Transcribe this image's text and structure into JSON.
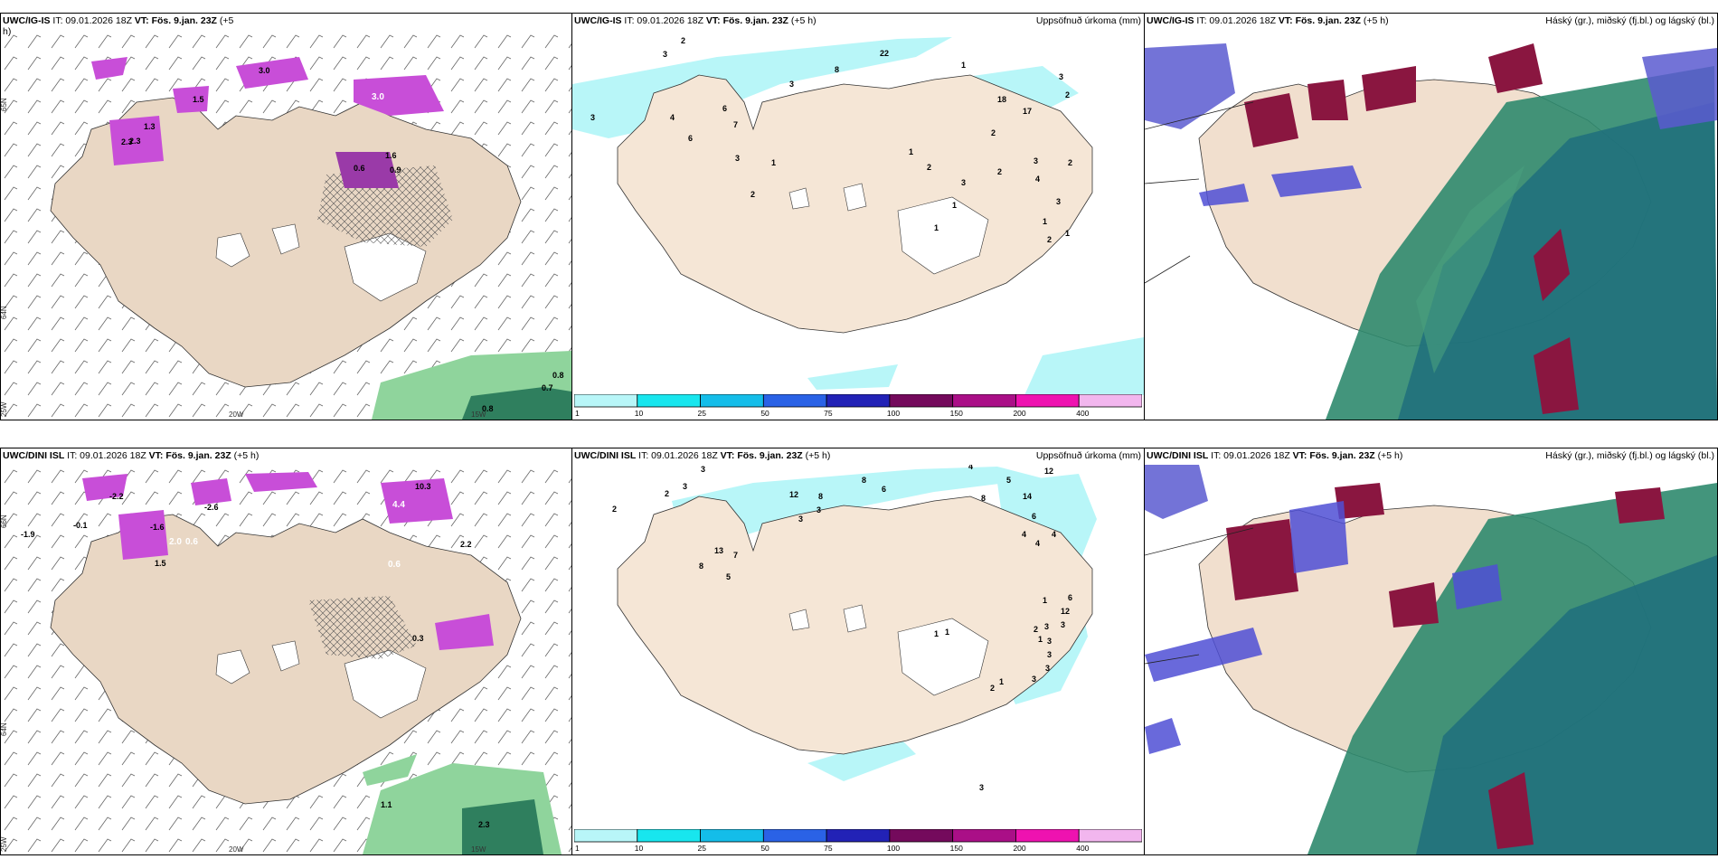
{
  "panels": {
    "top_left": {
      "model": "UWC/IG-IS",
      "it": "IT: 09.01.2026 18Z",
      "vt": "VT: Fös. 9.jan. 23Z",
      "lead": "(+5",
      "lead2": "h)",
      "lat_labels": [
        "65N",
        "64N"
      ],
      "lon_labels": [
        "20W",
        "15W",
        "25W"
      ],
      "values": [
        "2.3",
        "3.0",
        "2.3",
        "1.3",
        "1.5",
        "3.0",
        "1.6",
        "0.9",
        "0.6",
        "0.8",
        "0.7",
        "0.8"
      ]
    },
    "top_mid": {
      "model": "UWC/IG-IS",
      "it": "IT: 09.01.2026 18Z",
      "vt": "VT: Fös. 9.jan. 23Z",
      "lead": "(+5 h)",
      "right_title": "Uppsöfnuð úrkoma (mm)",
      "values": [
        "2",
        "3",
        "3",
        "4",
        "6",
        "7",
        "6",
        "3",
        "2",
        "1",
        "8",
        "3",
        "22",
        "1",
        "18",
        "17",
        "3",
        "2",
        "2",
        "1",
        "2",
        "3",
        "2",
        "3",
        "4",
        "2",
        "1",
        "3",
        "1",
        "1",
        "2",
        "1"
      ]
    },
    "top_right": {
      "model": "UWC/IG-IS",
      "it": "IT: 09.01.2026 18Z",
      "vt": "VT: Fös. 9.jan. 23Z",
      "lead": "(+5 h)",
      "right_title": "Háský (gr.), miðský (fj.bl.) og lágský (bl.)"
    },
    "bottom_left": {
      "model": "UWC/DINI ISL",
      "it": "IT: 09.01.2026 18Z",
      "vt": "VT: Fös. 9.jan. 23Z",
      "lead": "(+5 h)",
      "lat_labels": [
        "66N",
        "64N"
      ],
      "lon_labels": [
        "20W",
        "15W",
        "25W"
      ],
      "values": [
        "-1.9",
        "-0.1",
        "-2.2",
        "-2.6",
        "4.4",
        "10.3",
        "-1.6",
        "2.0",
        "0.6",
        "1.5",
        "2.2",
        "0.6",
        "0.3",
        "1.1",
        "2.3"
      ]
    },
    "bottom_mid": {
      "model": "UWC/DINI ISL",
      "it": "IT: 09.01.2026 18Z",
      "vt": "VT: Fös. 9.jan. 23Z",
      "lead": "(+5 h)",
      "right_title": "Uppsöfnuð úrkoma (mm)",
      "values": [
        "3",
        "2",
        "2",
        "3",
        "12",
        "8",
        "3",
        "8",
        "6",
        "4",
        "5",
        "12",
        "13",
        "7",
        "8",
        "5",
        "3",
        "8",
        "14",
        "6",
        "4",
        "4",
        "4",
        "1",
        "6",
        "12",
        "1",
        "1",
        "2",
        "3",
        "3",
        "3",
        "1",
        "3",
        "3",
        "3",
        "2",
        "1",
        "3"
      ]
    },
    "bottom_right": {
      "model": "UWC/DINI ISL",
      "it": "IT: 09.01.2026 18Z",
      "vt": "VT: Fös. 9.jan. 23Z",
      "lead": "(+5 h)",
      "right_title": "Háský (gr.), miðský (fj.bl.) og lágský (bl.)"
    }
  },
  "colorbar": {
    "ticks": [
      "1",
      "10",
      "25",
      "50",
      "75",
      "100",
      "150",
      "200",
      "400"
    ],
    "colors": [
      "#b8f6f8",
      "#18e6ee",
      "#14bde9",
      "#2a62e6",
      "#2222b6",
      "#740a5c",
      "#aa0f87",
      "#ee12b0",
      "#f2b6ee"
    ]
  },
  "colors": {
    "land": "#f5e6d6",
    "land_tan": "#e9d7c4",
    "precip_cyan": "#a9eef6",
    "precip_purple": "#c84ed8",
    "green_dark": "#2f7f5e",
    "green_light": "#8fd49c"
  }
}
